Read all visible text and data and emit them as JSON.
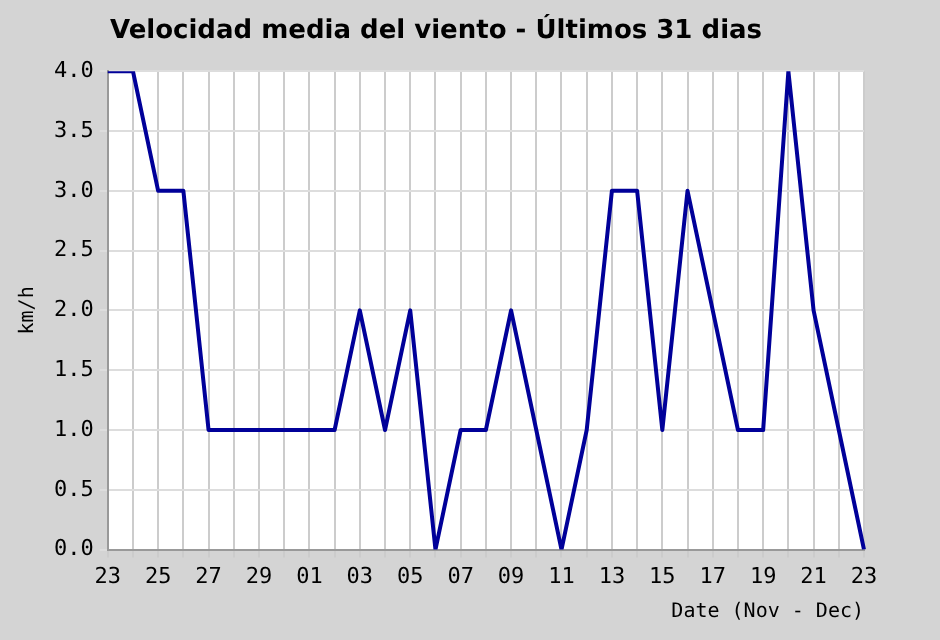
{
  "chart_data": {
    "type": "line",
    "title": "Velocidad media del viento - Últimos 31 dias",
    "xlabel": "Date (Nov - Dec)",
    "ylabel": "km/h",
    "categories": [
      "23",
      null,
      "25",
      null,
      "27",
      null,
      "29",
      null,
      "01",
      null,
      "03",
      null,
      "05",
      null,
      "07",
      null,
      "09",
      null,
      "11",
      null,
      "13",
      null,
      "15",
      null,
      "17",
      null,
      "19",
      null,
      "21",
      null,
      "23"
    ],
    "series": [
      {
        "color": "#000099",
        "values": [
          4,
          4,
          3,
          3,
          1,
          1,
          1,
          1,
          1,
          1,
          2,
          1,
          2,
          0,
          1,
          1,
          2,
          1,
          0,
          1,
          3,
          3,
          1,
          3,
          2,
          1,
          1,
          4,
          2,
          1,
          0
        ]
      }
    ],
    "ylim": [
      0,
      4
    ],
    "yticks": [
      {
        "value": 0,
        "label": "0.0"
      },
      {
        "value": 0.5,
        "label": "0.5"
      },
      {
        "value": 1,
        "label": "1.0"
      },
      {
        "value": 1.5,
        "label": "1.5"
      },
      {
        "value": 2,
        "label": "2.0"
      },
      {
        "value": 2.5,
        "label": "2.5"
      },
      {
        "value": 3,
        "label": "3.0"
      },
      {
        "value": 3.5,
        "label": "3.5"
      },
      {
        "value": 4,
        "label": "4.0"
      }
    ],
    "grid": true,
    "legend": false,
    "marker": "none",
    "line_style": "solid"
  }
}
